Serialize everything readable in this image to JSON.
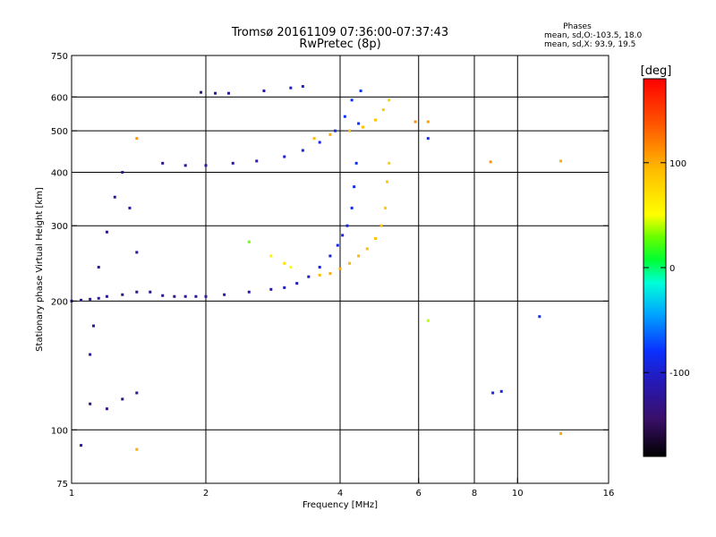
{
  "chart_data": {
    "type": "scatter",
    "title": "Tromsø 20161109 07:36:00-07:37:43",
    "subtitle": "RwPretec (8p)",
    "xlabel": "Frequency [MHz]",
    "ylabel": "Stationary phase Virtual Height [km]",
    "x_scale": "log",
    "y_scale": "log",
    "xlim": [
      1,
      16
    ],
    "ylim": [
      75,
      750
    ],
    "x_ticks": [
      1,
      2,
      4,
      6,
      8,
      10,
      16
    ],
    "x_tick_labels": [
      "1",
      "2",
      "4",
      "6",
      "8",
      "10",
      "16"
    ],
    "y_ticks": [
      75,
      100,
      200,
      300,
      400,
      500,
      600,
      750
    ],
    "y_tick_labels": [
      "75",
      "100",
      "200",
      "300",
      "400",
      "500",
      "600",
      "750"
    ],
    "x_grid": [
      2,
      4,
      6,
      8,
      10
    ],
    "y_grid": [
      100,
      200,
      300,
      400,
      500,
      600
    ],
    "phase_stats": {
      "heading": "Phases",
      "o_line": "mean, sd,O:-103.5, 18.0",
      "x_line": "mean, sd,X:  93.9, 19.5"
    },
    "colorbar": {
      "label": "[deg]",
      "range": [
        -180,
        180
      ],
      "ticks": [
        100,
        0,
        -100
      ],
      "tick_labels": [
        "100",
        "0",
        "-100"
      ]
    },
    "series": [
      {
        "mode": "O",
        "points": [
          {
            "x": 1.0,
            "y": 200,
            "phase": -115
          },
          {
            "x": 1.05,
            "y": 201,
            "phase": -112
          },
          {
            "x": 1.1,
            "y": 202,
            "phase": -118
          },
          {
            "x": 1.15,
            "y": 203,
            "phase": -120
          },
          {
            "x": 1.2,
            "y": 205,
            "phase": -125
          },
          {
            "x": 1.3,
            "y": 207,
            "phase": -130
          },
          {
            "x": 1.4,
            "y": 210,
            "phase": -128
          },
          {
            "x": 1.5,
            "y": 210,
            "phase": -130
          },
          {
            "x": 1.6,
            "y": 206,
            "phase": -128
          },
          {
            "x": 1.7,
            "y": 205,
            "phase": -128
          },
          {
            "x": 1.8,
            "y": 205,
            "phase": -125
          },
          {
            "x": 1.9,
            "y": 205,
            "phase": -122
          },
          {
            "x": 2.0,
            "y": 205,
            "phase": -120
          },
          {
            "x": 2.2,
            "y": 207,
            "phase": -115
          },
          {
            "x": 2.5,
            "y": 210,
            "phase": -110
          },
          {
            "x": 2.8,
            "y": 213,
            "phase": -110
          },
          {
            "x": 3.0,
            "y": 215,
            "phase": -105
          },
          {
            "x": 3.2,
            "y": 220,
            "phase": -105
          },
          {
            "x": 3.4,
            "y": 228,
            "phase": -100
          },
          {
            "x": 3.6,
            "y": 240,
            "phase": -98
          },
          {
            "x": 3.8,
            "y": 255,
            "phase": -95
          },
          {
            "x": 3.95,
            "y": 270,
            "phase": -92
          },
          {
            "x": 4.05,
            "y": 285,
            "phase": -90
          },
          {
            "x": 4.15,
            "y": 300,
            "phase": -88
          },
          {
            "x": 4.25,
            "y": 330,
            "phase": -85
          },
          {
            "x": 4.3,
            "y": 370,
            "phase": -85
          },
          {
            "x": 4.35,
            "y": 420,
            "phase": -82
          },
          {
            "x": 4.4,
            "y": 520,
            "phase": -80
          },
          {
            "x": 4.45,
            "y": 620,
            "phase": -78
          },
          {
            "x": 1.6,
            "y": 420,
            "phase": -130
          },
          {
            "x": 1.8,
            "y": 415,
            "phase": -125
          },
          {
            "x": 2.0,
            "y": 415,
            "phase": -120
          },
          {
            "x": 2.3,
            "y": 420,
            "phase": -115
          },
          {
            "x": 2.6,
            "y": 425,
            "phase": -110
          },
          {
            "x": 3.0,
            "y": 435,
            "phase": -100
          },
          {
            "x": 3.3,
            "y": 450,
            "phase": -95
          },
          {
            "x": 3.6,
            "y": 470,
            "phase": -90
          },
          {
            "x": 3.9,
            "y": 500,
            "phase": -85
          },
          {
            "x": 4.1,
            "y": 540,
            "phase": -82
          },
          {
            "x": 4.25,
            "y": 590,
            "phase": -80
          },
          {
            "x": 1.95,
            "y": 615,
            "phase": -130
          },
          {
            "x": 2.1,
            "y": 612,
            "phase": -125
          },
          {
            "x": 2.25,
            "y": 612,
            "phase": -120
          },
          {
            "x": 2.7,
            "y": 620,
            "phase": -110
          },
          {
            "x": 3.1,
            "y": 630,
            "phase": -100
          },
          {
            "x": 3.3,
            "y": 635,
            "phase": -100
          },
          {
            "x": 1.1,
            "y": 150,
            "phase": -120
          },
          {
            "x": 1.12,
            "y": 175,
            "phase": -125
          },
          {
            "x": 1.15,
            "y": 240,
            "phase": -130
          },
          {
            "x": 1.2,
            "y": 290,
            "phase": -130
          },
          {
            "x": 1.25,
            "y": 350,
            "phase": -125
          },
          {
            "x": 1.3,
            "y": 400,
            "phase": -120
          },
          {
            "x": 1.35,
            "y": 330,
            "phase": -118
          },
          {
            "x": 1.4,
            "y": 260,
            "phase": -120
          },
          {
            "x": 1.1,
            "y": 115,
            "phase": -135
          },
          {
            "x": 1.2,
            "y": 112,
            "phase": -132
          },
          {
            "x": 1.3,
            "y": 118,
            "phase": -130
          },
          {
            "x": 1.4,
            "y": 122,
            "phase": -125
          },
          {
            "x": 1.05,
            "y": 92,
            "phase": -110
          },
          {
            "x": 8.8,
            "y": 122,
            "phase": -90
          },
          {
            "x": 9.2,
            "y": 123,
            "phase": -92
          },
          {
            "x": 11.2,
            "y": 184,
            "phase": -80
          },
          {
            "x": 6.3,
            "y": 480,
            "phase": -85
          }
        ]
      },
      {
        "mode": "X",
        "points": [
          {
            "x": 2.5,
            "y": 275,
            "phase": 30
          },
          {
            "x": 2.8,
            "y": 255,
            "phase": 60
          },
          {
            "x": 3.0,
            "y": 245,
            "phase": 70
          },
          {
            "x": 3.1,
            "y": 240,
            "phase": 50
          },
          {
            "x": 3.6,
            "y": 230,
            "phase": 95
          },
          {
            "x": 3.8,
            "y": 232,
            "phase": 100
          },
          {
            "x": 4.0,
            "y": 238,
            "phase": 100
          },
          {
            "x": 4.2,
            "y": 245,
            "phase": 95
          },
          {
            "x": 4.4,
            "y": 255,
            "phase": 95
          },
          {
            "x": 4.6,
            "y": 265,
            "phase": 92
          },
          {
            "x": 4.8,
            "y": 280,
            "phase": 90
          },
          {
            "x": 4.95,
            "y": 300,
            "phase": 88
          },
          {
            "x": 5.05,
            "y": 330,
            "phase": 85
          },
          {
            "x": 5.1,
            "y": 380,
            "phase": 85
          },
          {
            "x": 5.15,
            "y": 420,
            "phase": 80
          },
          {
            "x": 3.5,
            "y": 480,
            "phase": 95
          },
          {
            "x": 3.8,
            "y": 490,
            "phase": 100
          },
          {
            "x": 4.2,
            "y": 500,
            "phase": 95
          },
          {
            "x": 4.5,
            "y": 510,
            "phase": 92
          },
          {
            "x": 4.8,
            "y": 530,
            "phase": 90
          },
          {
            "x": 5.0,
            "y": 560,
            "phase": 85
          },
          {
            "x": 5.15,
            "y": 590,
            "phase": 80
          },
          {
            "x": 1.4,
            "y": 480,
            "phase": 110
          },
          {
            "x": 1.4,
            "y": 90,
            "phase": 100
          },
          {
            "x": 5.9,
            "y": 525,
            "phase": 110
          },
          {
            "x": 6.3,
            "y": 525,
            "phase": 105
          },
          {
            "x": 6.3,
            "y": 180,
            "phase": 40
          },
          {
            "x": 8.7,
            "y": 423,
            "phase": 110
          },
          {
            "x": 12.5,
            "y": 425,
            "phase": 100
          },
          {
            "x": 12.5,
            "y": 98,
            "phase": 100
          }
        ]
      }
    ]
  }
}
